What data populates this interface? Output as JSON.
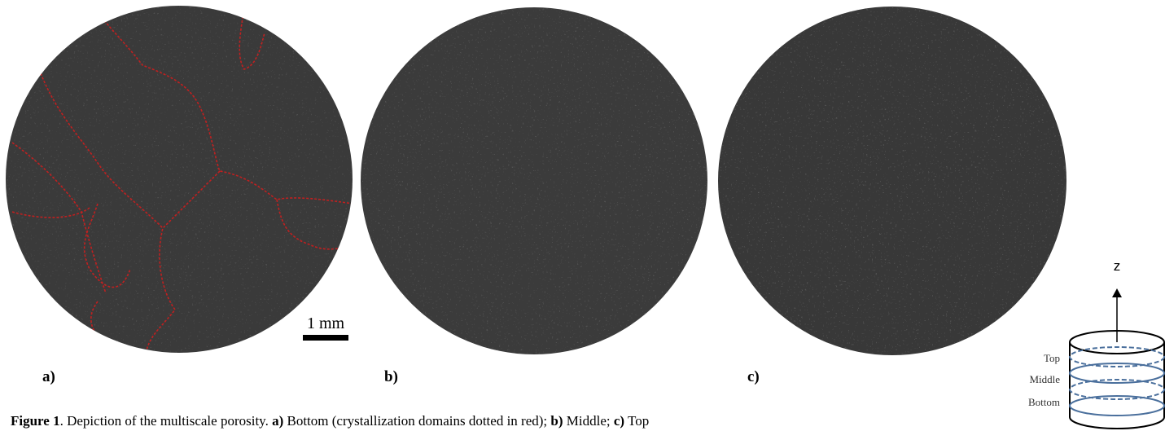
{
  "panels": [
    {
      "label": "a)"
    },
    {
      "label": "b)"
    },
    {
      "label": "c)"
    }
  ],
  "scale_bar": "1 mm",
  "axis_label": "z",
  "levels": [
    "Top",
    "Middle",
    "Bottom"
  ],
  "caption": [
    {
      "text": "Figure 1",
      "bold": true
    },
    {
      "text": ". Depiction of the multiscale porosity. ",
      "bold": false
    },
    {
      "text": "a)",
      "bold": true
    },
    {
      "text": " Bottom (crystallization domains dotted in red); ",
      "bold": false
    },
    {
      "text": "b)",
      "bold": true
    },
    {
      "text": " Middle; ",
      "bold": false
    },
    {
      "text": "c)",
      "bold": true
    },
    {
      "text": " Top",
      "bold": false
    }
  ]
}
